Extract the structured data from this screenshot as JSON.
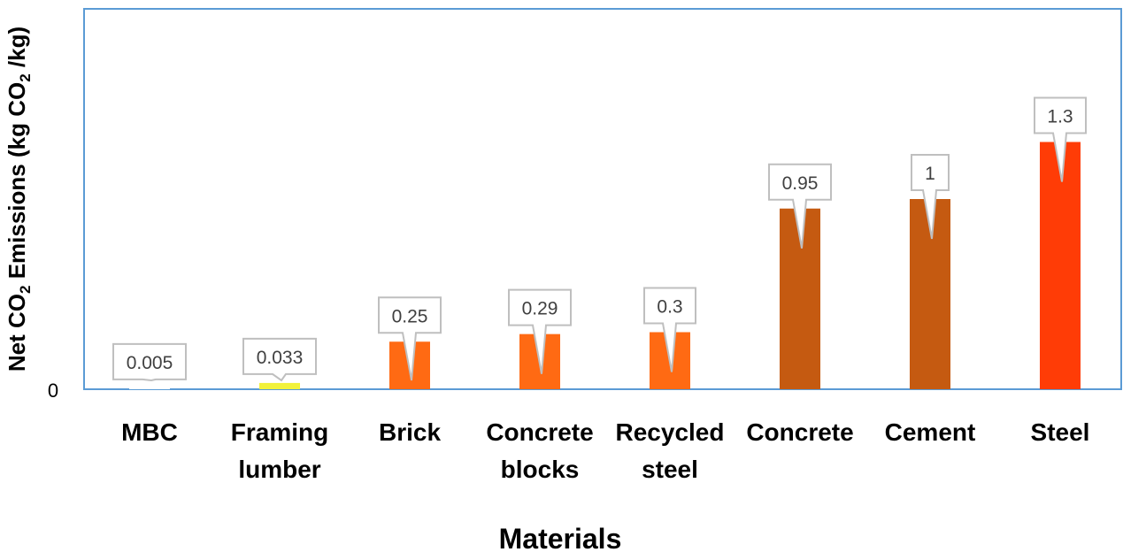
{
  "chart_data": {
    "type": "bar",
    "title": "",
    "xlabel": "Materials",
    "ylabel_parts": {
      "a": "Net CO",
      "a_sub": "2",
      "b": " Emissions (kg CO",
      "b_sub": "2",
      "c": " /kg)"
    },
    "ylim": [
      0,
      1.6
    ],
    "y_tick_labels": [
      "0"
    ],
    "grid": false,
    "legend": "none",
    "categories": [
      [
        "MBC"
      ],
      [
        "Framing",
        "lumber"
      ],
      [
        "Brick"
      ],
      [
        "Concrete",
        "blocks"
      ],
      [
        "Recycled",
        "steel"
      ],
      [
        "Concrete"
      ],
      [
        "Cement"
      ],
      [
        "Steel"
      ]
    ],
    "values": [
      0.005,
      0.033,
      0.25,
      0.29,
      0.3,
      0.95,
      1,
      1.3
    ],
    "data_labels": [
      "0.005",
      "0.033",
      "0.25",
      "0.29",
      "0.3",
      "0.95",
      "1",
      "1.3"
    ],
    "colors": [
      "#ffffff",
      "#f2f23a",
      "#ff6a13",
      "#ff6a13",
      "#ff6a13",
      "#c55a11",
      "#c55a11",
      "#ff3c06"
    ]
  },
  "style": {
    "frame_color": "#5b9bd5",
    "callout_border": "#bfbfbf"
  }
}
